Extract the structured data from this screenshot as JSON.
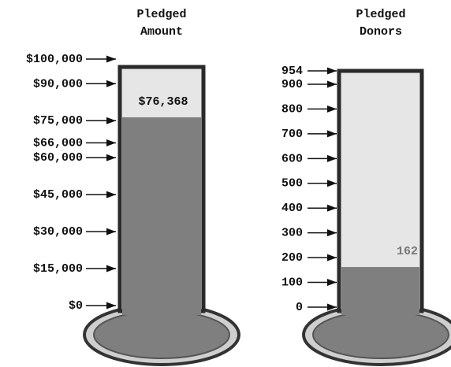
{
  "chart_data": [
    {
      "type": "thermometer",
      "title": "Pledged Amount",
      "values": [
        76368
      ],
      "value_labels": [
        "$76,368"
      ],
      "ylim": [
        0,
        100000
      ],
      "yticks": [
        {
          "value": 0,
          "label": "$0"
        },
        {
          "value": 15000,
          "label": "$15,000"
        },
        {
          "value": 30000,
          "label": "$30,000"
        },
        {
          "value": 45000,
          "label": "$45,000"
        },
        {
          "value": 60000,
          "label": "$60,000"
        },
        {
          "value": 66000,
          "label": "$66,000"
        },
        {
          "value": 75000,
          "label": "$75,000"
        },
        {
          "value": 90000,
          "label": "$90,000"
        },
        {
          "value": 100000,
          "label": "$100,000"
        }
      ],
      "color": "#7f7f7f"
    },
    {
      "type": "thermometer",
      "title": "Pledged Donors",
      "values": [
        162
      ],
      "ylim": [
        0,
        954
      ],
      "yticks": [
        0,
        100,
        200,
        300,
        400,
        500,
        600,
        700,
        800,
        900,
        954
      ],
      "color": "#7f7f7f"
    }
  ]
}
